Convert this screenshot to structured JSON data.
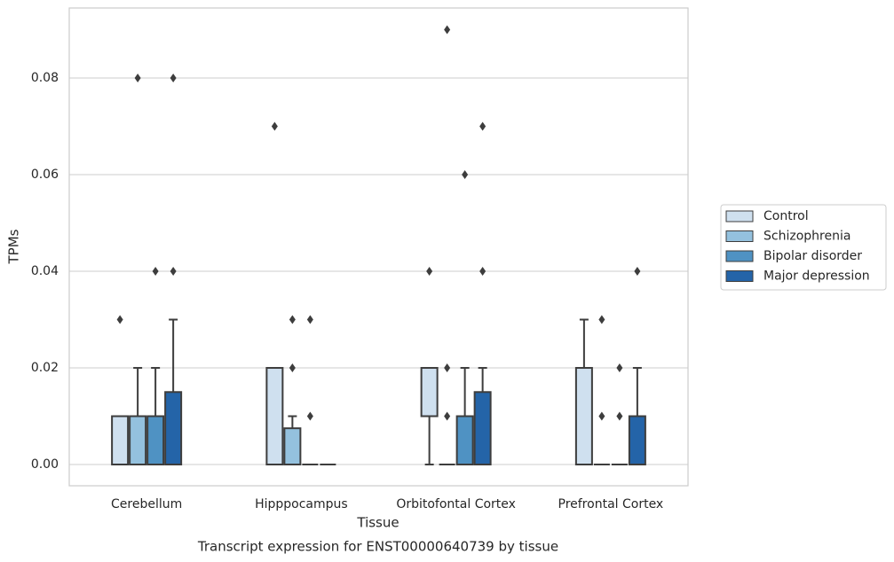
{
  "chart_data": {
    "type": "box",
    "title": "Transcript expression for ENST00000640739 by tissue",
    "x_label": "Tissue",
    "y_label": "TPMs",
    "categories": [
      "Cerebellum",
      "Hipppocampus",
      "Orbitofontal Cortex",
      "Prefrontal Cortex"
    ],
    "ylim": [
      -0.0044,
      0.0945
    ],
    "yticks": [
      {
        "value": 0,
        "label": "0.00"
      },
      0.02,
      0.04,
      0.06,
      0.08
    ],
    "grid": true,
    "legend": "right",
    "series": [
      {
        "name": "Control",
        "color": "#cfe0ef",
        "boxes": [
          {
            "whislo": 0,
            "q1": 0,
            "med": 0,
            "q3": 0.01,
            "whishi": 0.01,
            "fliers": [
              0.03
            ]
          },
          {
            "whislo": 0,
            "q1": 0,
            "med": 0,
            "q3": 0.02,
            "whishi": 0.02,
            "fliers": [
              0.07
            ]
          },
          {
            "whislo": 0,
            "q1": 0.01,
            "med": 0.01,
            "q3": 0.02,
            "whishi": 0.02,
            "fliers": [
              0.04
            ]
          },
          {
            "whislo": 0,
            "q1": 0,
            "med": 0,
            "q3": 0.02,
            "whishi": 0.03,
            "fliers": []
          }
        ]
      },
      {
        "name": "Schizophrenia",
        "color": "#94c1de",
        "boxes": [
          {
            "whislo": 0,
            "q1": 0,
            "med": 0,
            "q3": 0.01,
            "whishi": 0.02,
            "fliers": [
              0.08
            ]
          },
          {
            "whislo": 0,
            "q1": 0,
            "med": 0,
            "q3": 0.0075,
            "whishi": 0.01,
            "fliers": [
              0.02,
              0.03
            ]
          },
          {
            "whislo": 0,
            "q1": 0,
            "med": 0,
            "q3": 0,
            "whishi": 0,
            "fliers": [
              0.01,
              0.02,
              0.09
            ]
          },
          {
            "whislo": 0,
            "q1": 0,
            "med": 0,
            "q3": 0,
            "whishi": 0,
            "fliers": [
              0.01,
              0.03
            ]
          }
        ]
      },
      {
        "name": "Bipolar disorder",
        "color": "#4f92c3",
        "boxes": [
          {
            "whislo": 0,
            "q1": 0,
            "med": 0,
            "q3": 0.01,
            "whishi": 0.02,
            "fliers": [
              0.04
            ]
          },
          {
            "whislo": 0,
            "q1": 0,
            "med": 0,
            "q3": 0,
            "whishi": 0,
            "fliers": [
              0.01,
              0.03
            ]
          },
          {
            "whislo": 0,
            "q1": 0,
            "med": 0,
            "q3": 0.01,
            "whishi": 0.02,
            "fliers": [
              0.06
            ]
          },
          {
            "whislo": 0,
            "q1": 0,
            "med": 0,
            "q3": 0,
            "whishi": 0,
            "fliers": [
              0.01,
              0.02
            ]
          }
        ]
      },
      {
        "name": "Major depression",
        "color": "#2464a8",
        "boxes": [
          {
            "whislo": 0,
            "q1": 0,
            "med": 0,
            "q3": 0.015,
            "whishi": 0.03,
            "fliers": [
              0.04,
              0.08
            ]
          },
          {
            "whislo": 0,
            "q1": 0,
            "med": 0,
            "q3": 0,
            "whishi": 0,
            "fliers": []
          },
          {
            "whislo": 0,
            "q1": 0,
            "med": 0,
            "q3": 0.015,
            "whishi": 0.02,
            "fliers": [
              0.04,
              0.07
            ]
          },
          {
            "whislo": 0,
            "q1": 0,
            "med": 0,
            "q3": 0.01,
            "whishi": 0.02,
            "fliers": [
              0.04
            ]
          }
        ]
      }
    ]
  }
}
